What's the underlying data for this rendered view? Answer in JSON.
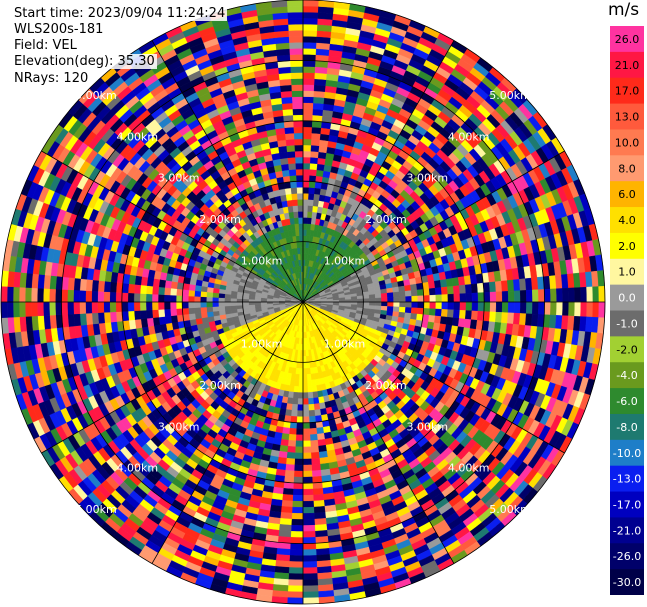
{
  "header": {
    "start_time": "Start time: 2023/09/04 11:24:24",
    "station": "WLS200s-181",
    "field": "Field: VEL",
    "elevation": "Elevation(deg): 35.30",
    "nrays": "NRays: 120"
  },
  "colorbar": {
    "unit": "m/s",
    "levels": [
      {
        "label": "26.0",
        "color": "#ff33a0"
      },
      {
        "label": "21.0",
        "color": "#ff1744"
      },
      {
        "label": "17.0",
        "color": "#ff2a1a"
      },
      {
        "label": "13.0",
        "color": "#ff5a3c"
      },
      {
        "label": "10.0",
        "color": "#ff7a50"
      },
      {
        "label": "8.0",
        "color": "#ff9a70"
      },
      {
        "label": "6.0",
        "color": "#ffb400"
      },
      {
        "label": "4.0",
        "color": "#ffe000"
      },
      {
        "label": "2.0",
        "color": "#ffff00"
      },
      {
        "label": "1.0",
        "color": "#fff7a0"
      },
      {
        "label": "0.0",
        "color": "#9a9a9a"
      },
      {
        "label": "-1.0",
        "color": "#6c6c6c"
      },
      {
        "label": "-2.0",
        "color": "#a2d032"
      },
      {
        "label": "-4.0",
        "color": "#6a9a1e"
      },
      {
        "label": "-6.0",
        "color": "#2e8a2e"
      },
      {
        "label": "-8.0",
        "color": "#1e7a70"
      },
      {
        "label": "-10.0",
        "color": "#1e7ec8"
      },
      {
        "label": "-13.0",
        "color": "#0a1ef0"
      },
      {
        "label": "-17.0",
        "color": "#0000c0"
      },
      {
        "label": "-21.0",
        "color": "#000090"
      },
      {
        "label": "-26.0",
        "color": "#00006a"
      },
      {
        "label": "-30.0",
        "color": "#000048"
      }
    ]
  },
  "chart_data": {
    "type": "heatmap",
    "projection": "polar-ppi",
    "field": "VEL",
    "unit": "m/s",
    "n_rays": 120,
    "range_rings_km": [
      "1.00km",
      "2.00km",
      "3.00km",
      "4.00km",
      "5.00km"
    ],
    "range_ring_values_km": [
      1.0,
      2.0,
      3.0,
      4.0,
      5.0
    ],
    "max_range_km": 5.0,
    "value_range": [
      -30.0,
      26.0
    ],
    "regions": [
      {
        "sector": "north (azimuth 300-60 deg)",
        "range_km": [
          0.0,
          1.3
        ],
        "value_ms": -5.0
      },
      {
        "sector": "east/west (azimuth 60-110 and 250-300 deg)",
        "range_km": [
          0.0,
          1.3
        ],
        "value_ms": 0.0
      },
      {
        "sector": "south (azimuth 110-250 deg)",
        "range_km": [
          0.0,
          1.5
        ],
        "value_ms": 4.0
      },
      {
        "sector": "all azimuths",
        "range_km": [
          1.5,
          5.0
        ],
        "value_ms": "noise (random across full scale)"
      }
    ]
  }
}
